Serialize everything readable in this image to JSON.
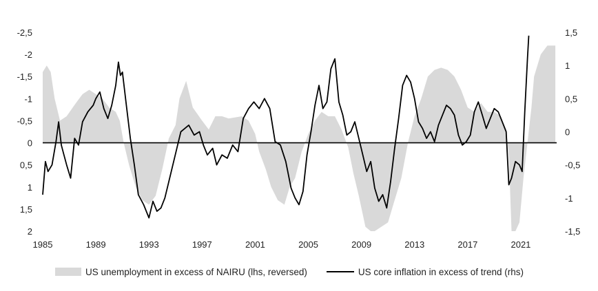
{
  "chart_data": {
    "type": "area+line",
    "title": "",
    "xlabel": "",
    "x_ticks": [
      "1985",
      "1989",
      "1993",
      "1997",
      "2001",
      "2005",
      "2009",
      "2013",
      "2017",
      "2021"
    ],
    "left_axis": {
      "reversed": true,
      "ylim": [
        -2.5,
        2
      ],
      "ticks": [
        -2.5,
        -2,
        -1.5,
        -1,
        -0.5,
        0,
        0.5,
        1,
        1.5,
        2
      ],
      "tick_labels": [
        "-2,5",
        "-2",
        "-1,5",
        "-1",
        "-0,5",
        "0",
        "0,5",
        "1",
        "1,5",
        "2"
      ]
    },
    "right_axis": {
      "ylim": [
        -1.5,
        1.5
      ],
      "ticks": [
        1.5,
        1,
        0.5,
        0,
        -0.5,
        -1,
        -1.5
      ],
      "tick_labels": [
        "1,5",
        "1",
        "0,5",
        "0",
        "-0,5",
        "-1",
        "-1,5"
      ]
    },
    "grid": false,
    "legend_position": "bottom",
    "series": [
      {
        "name": "US unemployment in excess of NAIRU (lhs, reversed)",
        "type": "area",
        "axis": "left",
        "color": "#d9d9d9",
        "x": [
          1985.0,
          1985.3,
          1985.6,
          1985.9,
          1986.3,
          1986.8,
          1987.5,
          1988.0,
          1988.5,
          1989.0,
          1989.5,
          1990.0,
          1990.5,
          1990.8,
          1991.1,
          1991.5,
          1992.0,
          1992.5,
          1993.0,
          1993.5,
          1994.0,
          1994.5,
          1995.0,
          1995.3,
          1995.8,
          1996.3,
          1997.0,
          1997.5,
          1998.0,
          1998.5,
          1999.0,
          2000.0,
          2000.5,
          2001.0,
          2001.3,
          2001.8,
          2002.2,
          2002.7,
          2003.2,
          2003.6,
          2004.0,
          2004.5,
          2005.0,
          2005.5,
          2006.0,
          2006.5,
          2007.0,
          2007.5,
          2008.0,
          2008.4,
          2008.8,
          2009.3,
          2009.7,
          2010.0,
          2010.5,
          2011.0,
          2011.5,
          2012.0,
          2012.5,
          2013.0,
          2013.5,
          2014.0,
          2014.5,
          2015.0,
          2015.5,
          2016.0,
          2016.5,
          2017.0,
          2017.5,
          2018.0,
          2018.5,
          2019.0,
          2019.5,
          2019.9,
          2020.1,
          2020.3,
          2020.6,
          2020.9,
          2021.2,
          2021.5,
          2021.8,
          2022.0,
          2022.5,
          2023.0,
          2023.6
        ],
        "values": [
          -1.6,
          -1.75,
          -1.6,
          -1.0,
          -0.5,
          -0.6,
          -0.9,
          -1.1,
          -1.2,
          -1.1,
          -1.0,
          -0.8,
          -0.7,
          -0.5,
          0.0,
          0.5,
          1.0,
          1.3,
          1.4,
          1.2,
          0.6,
          -0.1,
          -0.4,
          -1.0,
          -1.4,
          -0.8,
          -0.5,
          -0.3,
          -0.6,
          -0.6,
          -0.55,
          -0.6,
          -0.5,
          -0.2,
          0.2,
          0.6,
          1.0,
          1.3,
          1.4,
          1.0,
          0.8,
          0.2,
          -0.2,
          -0.5,
          -0.7,
          -0.6,
          -0.6,
          -0.3,
          0.1,
          0.7,
          1.2,
          1.9,
          2.0,
          2.0,
          1.9,
          1.8,
          1.3,
          0.8,
          0.0,
          -0.6,
          -1.0,
          -1.5,
          -1.65,
          -1.7,
          -1.65,
          -1.5,
          -1.2,
          -0.8,
          -0.7,
          -0.9,
          -0.7,
          -0.7,
          -0.6,
          -0.3,
          0.3,
          2.0,
          2.0,
          1.8,
          0.8,
          0.0,
          -0.8,
          -1.5,
          -2.0,
          -2.2,
          -2.2
        ]
      },
      {
        "name": "US core inflation in excess of trend (rhs)",
        "type": "line",
        "axis": "right",
        "color": "#000000",
        "x": [
          1985.0,
          1985.2,
          1985.4,
          1985.7,
          1986.0,
          1986.2,
          1986.4,
          1986.6,
          1986.8,
          1987.1,
          1987.4,
          1987.7,
          1988.0,
          1988.4,
          1988.8,
          1989.0,
          1989.3,
          1989.6,
          1989.9,
          1990.2,
          1990.5,
          1990.7,
          1990.85,
          1991.0,
          1991.3,
          1991.6,
          1991.9,
          1992.2,
          1992.6,
          1993.0,
          1993.3,
          1993.6,
          1993.9,
          1994.2,
          1994.5,
          1994.8,
          1995.1,
          1995.4,
          1995.7,
          1996.0,
          1996.4,
          1996.8,
          1997.1,
          1997.4,
          1997.8,
          1998.1,
          1998.5,
          1998.9,
          1999.3,
          1999.7,
          2000.1,
          2000.5,
          2000.9,
          2001.3,
          2001.7,
          2002.1,
          2002.5,
          2002.9,
          2003.3,
          2003.7,
          2004.0,
          2004.3,
          2004.6,
          2004.9,
          2005.2,
          2005.5,
          2005.8,
          2006.1,
          2006.4,
          2006.7,
          2007.0,
          2007.3,
          2007.6,
          2007.9,
          2008.2,
          2008.5,
          2008.8,
          2009.1,
          2009.4,
          2009.7,
          2010.0,
          2010.3,
          2010.6,
          2010.9,
          2011.2,
          2011.5,
          2011.8,
          2012.1,
          2012.4,
          2012.7,
          2013.0,
          2013.3,
          2013.6,
          2013.9,
          2014.2,
          2014.5,
          2014.8,
          2015.1,
          2015.4,
          2015.7,
          2016.0,
          2016.3,
          2016.6,
          2016.9,
          2017.2,
          2017.5,
          2017.8,
          2018.1,
          2018.4,
          2018.7,
          2019.0,
          2019.3,
          2019.6,
          2019.9,
          2020.1,
          2020.3,
          2020.6,
          2020.9,
          2021.1,
          2021.3,
          2021.5,
          2021.6
        ],
        "values": [
          -0.95,
          -0.45,
          -0.6,
          -0.5,
          -0.15,
          0.15,
          -0.2,
          -0.35,
          -0.5,
          -0.7,
          -0.1,
          -0.2,
          0.15,
          0.3,
          0.4,
          0.5,
          0.6,
          0.35,
          0.2,
          0.4,
          0.7,
          1.05,
          0.85,
          0.9,
          0.4,
          -0.1,
          -0.5,
          -0.95,
          -1.1,
          -1.3,
          -1.05,
          -1.2,
          -1.15,
          -1.0,
          -0.75,
          -0.5,
          -0.25,
          0.0,
          0.05,
          0.1,
          -0.05,
          0.0,
          -0.2,
          -0.35,
          -0.25,
          -0.5,
          -0.35,
          -0.4,
          -0.2,
          -0.3,
          0.2,
          0.35,
          0.45,
          0.35,
          0.5,
          0.35,
          -0.15,
          -0.2,
          -0.45,
          -0.85,
          -1.0,
          -1.1,
          -0.9,
          -0.35,
          0.0,
          0.4,
          0.7,
          0.35,
          0.45,
          0.95,
          1.1,
          0.45,
          0.25,
          -0.05,
          0.0,
          0.15,
          -0.1,
          -0.35,
          -0.6,
          -0.45,
          -0.85,
          -1.05,
          -0.95,
          -1.15,
          -0.75,
          -0.25,
          0.2,
          0.7,
          0.85,
          0.75,
          0.5,
          0.15,
          0.05,
          -0.1,
          0.0,
          -0.15,
          0.1,
          0.25,
          0.4,
          0.35,
          0.25,
          -0.05,
          -0.2,
          -0.15,
          -0.05,
          0.3,
          0.45,
          0.25,
          0.05,
          0.2,
          0.35,
          0.3,
          0.15,
          0.0,
          -0.8,
          -0.7,
          -0.45,
          -0.5,
          -0.6,
          0.3,
          1.1,
          1.45
        ]
      }
    ]
  }
}
